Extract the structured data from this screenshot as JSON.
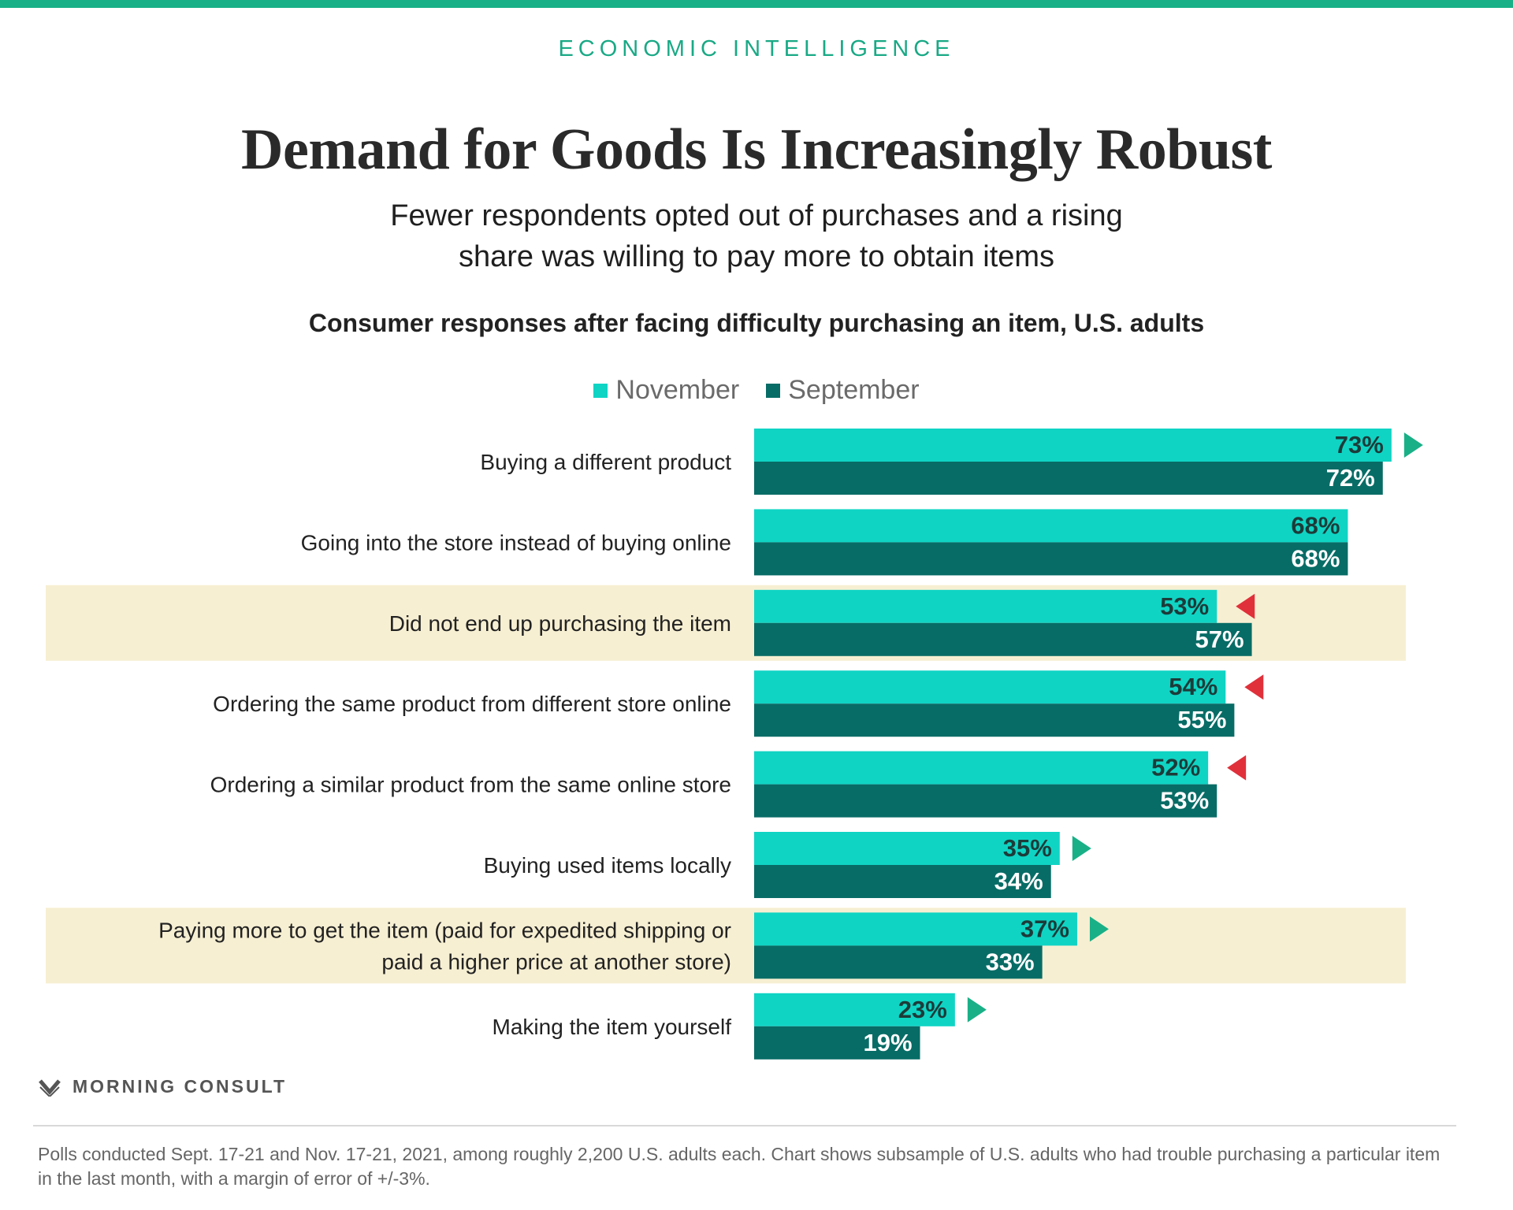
{
  "header": {
    "kicker": "ECONOMIC INTELLIGENCE",
    "title": "Demand for Goods Is Increasingly Robust",
    "subtitle_line1": "Fewer respondents opted out of purchases and a rising",
    "subtitle_line2": "share was willing to pay more to obtain items"
  },
  "legend": {
    "november_label": "November",
    "september_label": "September"
  },
  "colors": {
    "november": "#0fd4c4",
    "september": "#086c66",
    "highlight": "#f7efd2",
    "up_arrow": "#19b087",
    "down_arrow": "#e0303a",
    "accent": "#19b087"
  },
  "chart_data": {
    "type": "bar",
    "orientation": "horizontal",
    "title": "Consumer responses after facing difficulty purchasing an item, U.S. adults",
    "value_suffix": "%",
    "legend_placement": "top-center",
    "grid": false,
    "categories": [
      {
        "lines": [
          "Buying a different product"
        ],
        "highlight": false,
        "change": "up"
      },
      {
        "lines": [
          "Going into the store instead of buying online"
        ],
        "highlight": false,
        "change": "none"
      },
      {
        "lines": [
          "Did not end up purchasing the item"
        ],
        "highlight": true,
        "change": "down"
      },
      {
        "lines": [
          "Ordering the same product from different store online"
        ],
        "highlight": false,
        "change": "down"
      },
      {
        "lines": [
          "Ordering a similar product from the same online store"
        ],
        "highlight": false,
        "change": "down"
      },
      {
        "lines": [
          "Buying used items locally"
        ],
        "highlight": false,
        "change": "up"
      },
      {
        "lines": [
          "Paying more to get the item (paid for expedited shipping or",
          "paid a higher price at another store)"
        ],
        "highlight": true,
        "change": "up"
      },
      {
        "lines": [
          "Making the item yourself"
        ],
        "highlight": false,
        "change": "up"
      }
    ],
    "series": [
      {
        "name": "November",
        "values": [
          73,
          68,
          53,
          54,
          52,
          35,
          37,
          23
        ]
      },
      {
        "name": "September",
        "values": [
          72,
          68,
          57,
          55,
          53,
          34,
          33,
          19
        ]
      }
    ]
  },
  "branding": {
    "logo_icon": "morning-consult-m-icon",
    "name": "MORNING CONSULT"
  },
  "footnote": "Polls conducted Sept. 17-21 and Nov. 17-21, 2021, among roughly 2,200 U.S. adults each. Chart shows subsample of U.S. adults who had trouble purchasing a particular item in the last month, with a margin of error of +/-3%."
}
